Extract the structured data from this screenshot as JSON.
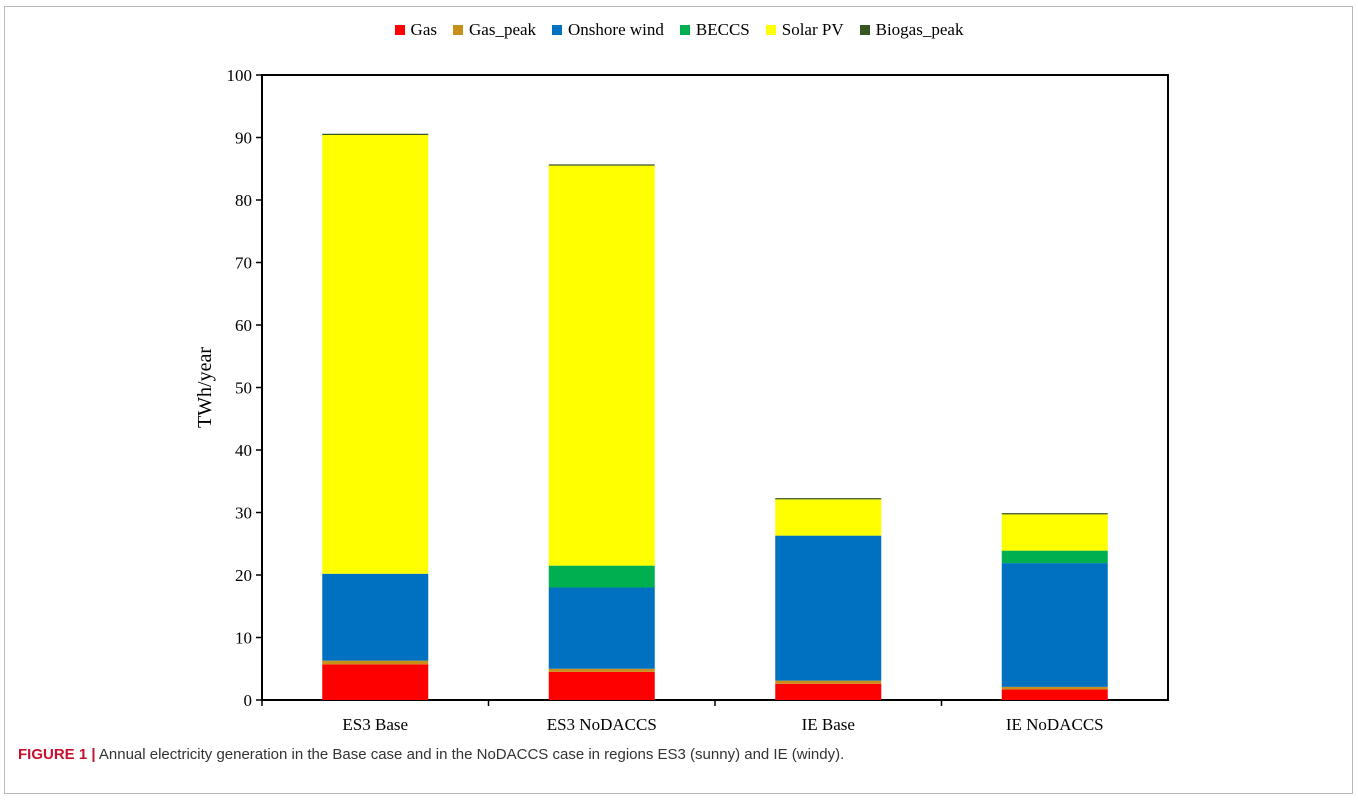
{
  "chart_data": {
    "type": "bar",
    "stacked": true,
    "categories": [
      "ES3 Base",
      "ES3 NoDACCS",
      "IE Base",
      "IE NoDACCS"
    ],
    "series": [
      {
        "name": "Gas",
        "color": "#ff0000",
        "values": [
          5.7,
          4.5,
          2.6,
          1.7
        ]
      },
      {
        "name": "Gas_peak",
        "color": "#c8901a",
        "values": [
          0.6,
          0.5,
          0.5,
          0.4
        ]
      },
      {
        "name": "Onshore wind",
        "color": "#0070c0",
        "values": [
          13.9,
          13.0,
          23.2,
          19.8
        ]
      },
      {
        "name": "BECCS",
        "color": "#00b050",
        "values": [
          0.0,
          3.5,
          0.0,
          2.0
        ]
      },
      {
        "name": "Solar PV",
        "color": "#ffff00",
        "values": [
          70.2,
          64.0,
          5.8,
          5.8
        ]
      },
      {
        "name": "Biogas_peak",
        "color": "#375623",
        "values": [
          0.2,
          0.2,
          0.2,
          0.2
        ]
      }
    ],
    "ylabel": "TWh/year",
    "ylim": [
      0,
      100
    ],
    "yticks": [
      "0",
      "10",
      "20",
      "30",
      "40",
      "50",
      "60",
      "70",
      "80",
      "90",
      "100"
    ],
    "legend_position": "top",
    "grid": false
  },
  "caption": {
    "label": "FIGURE 1 |",
    "text": " Annual electricity generation in the Base case and in the NoDACCS case in regions ES3 (sunny) and IE (windy)."
  }
}
